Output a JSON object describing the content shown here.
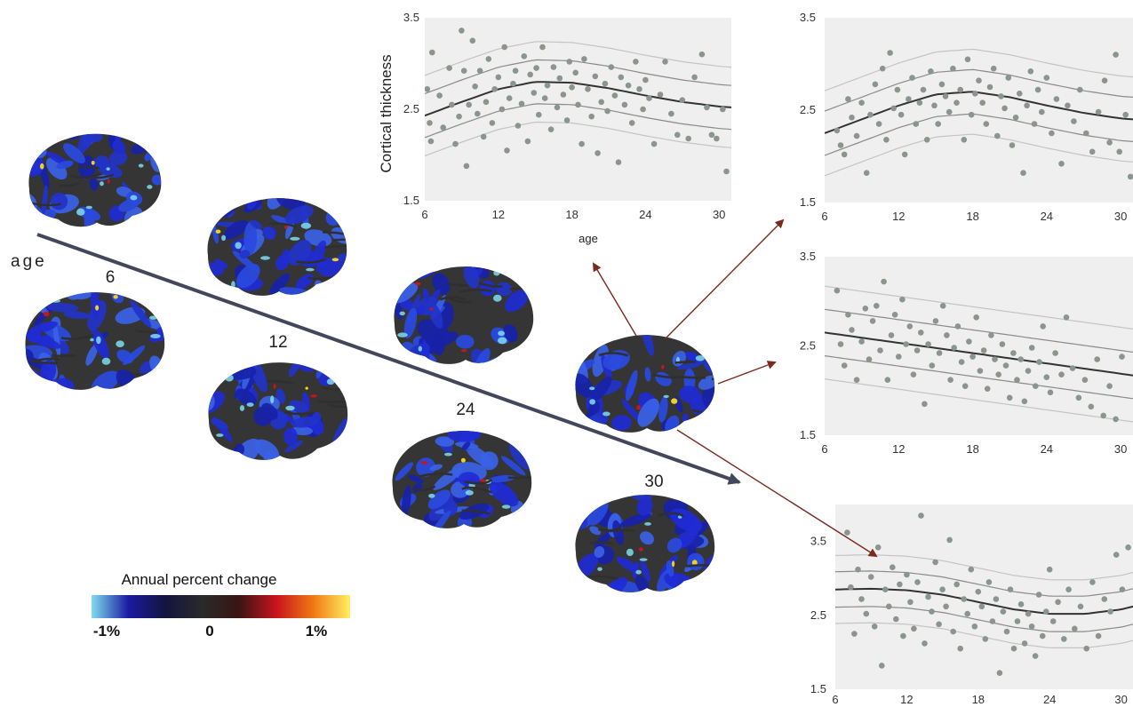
{
  "figure": {
    "age_axis_label": "age",
    "age_points": [
      "6",
      "12",
      "24",
      "30"
    ],
    "colorbar": {
      "title": "Annual percent change",
      "min_label": "-1%",
      "mid_label": "0",
      "max_label": "1%",
      "stops": [
        "#7fdcef",
        "#1a1aa0",
        "#141440",
        "#2a2a2a",
        "#3a1414",
        "#c8141e",
        "#f07814",
        "#fff064"
      ]
    },
    "colors": {
      "point": "#8a958d",
      "panel_bg": "#efefef",
      "fit_line": "#333333",
      "inner_band": "#8a8a8a",
      "outer_band": "#c4c4c4",
      "arrow_red": "#7a2b1e",
      "age_arrow": "#44465c",
      "brain_base": "#353535",
      "brain_blue": "#1f2bd4"
    }
  },
  "chart_data": [
    {
      "type": "scatter",
      "title": "",
      "ylabel": "Cortical thickness",
      "xlabel": "age",
      "xlim": [
        6,
        31
      ],
      "ylim": [
        1.5,
        3.5
      ],
      "xticks": [
        "6",
        "12",
        "18",
        "24",
        "30"
      ],
      "yticks": [
        "3.5",
        "2.5",
        "1.5"
      ],
      "grid": false,
      "fit": {
        "x": [
          6,
          9,
          12,
          15,
          18,
          21,
          24,
          27,
          30,
          31
        ],
        "y": [
          2.43,
          2.58,
          2.72,
          2.8,
          2.79,
          2.73,
          2.65,
          2.58,
          2.53,
          2.52
        ]
      },
      "band_offsets": [
        0.24,
        0.44
      ],
      "points": [
        [
          6.2,
          2.72
        ],
        [
          6.4,
          2.35
        ],
        [
          6.5,
          2.15
        ],
        [
          6.6,
          3.12
        ],
        [
          7.2,
          2.65
        ],
        [
          7.5,
          2.3
        ],
        [
          8,
          2.95
        ],
        [
          8.2,
          2.55
        ],
        [
          8.5,
          2.12
        ],
        [
          8.8,
          2.42
        ],
        [
          9,
          3.36
        ],
        [
          9.2,
          2.92
        ],
        [
          9.4,
          1.88
        ],
        [
          9.6,
          2.55
        ],
        [
          9.9,
          3.25
        ],
        [
          10.1,
          2.75
        ],
        [
          10.3,
          2.45
        ],
        [
          10.5,
          2.92
        ],
        [
          10.8,
          2.2
        ],
        [
          11,
          2.58
        ],
        [
          11.2,
          3.05
        ],
        [
          11.5,
          2.35
        ],
        [
          11.7,
          2.72
        ],
        [
          12,
          2.85
        ],
        [
          12.3,
          2.5
        ],
        [
          12.5,
          3.18
        ],
        [
          12.7,
          2.05
        ],
        [
          12.9,
          2.62
        ],
        [
          13.2,
          2.78
        ],
        [
          13.4,
          2.92
        ],
        [
          13.6,
          2.32
        ],
        [
          13.9,
          2.56
        ],
        [
          14.1,
          3.08
        ],
        [
          14.4,
          2.15
        ],
        [
          14.6,
          2.88
        ],
        [
          14.9,
          2.68
        ],
        [
          15.1,
          2.95
        ],
        [
          15.3,
          2.44
        ],
        [
          15.6,
          3.18
        ],
        [
          15.8,
          2.62
        ],
        [
          16,
          2.76
        ],
        [
          16.3,
          2.28
        ],
        [
          16.5,
          2.96
        ],
        [
          16.8,
          2.52
        ],
        [
          17,
          2.84
        ],
        [
          17.3,
          2.66
        ],
        [
          17.6,
          2.38
        ],
        [
          17.8,
          3.02
        ],
        [
          18,
          2.74
        ],
        [
          18.3,
          2.9
        ],
        [
          18.5,
          2.55
        ],
        [
          18.8,
          2.12
        ],
        [
          19,
          3.05
        ],
        [
          19.3,
          2.72
        ],
        [
          19.6,
          2.42
        ],
        [
          19.9,
          2.86
        ],
        [
          20.1,
          2.02
        ],
        [
          20.4,
          2.58
        ],
        [
          20.7,
          2.78
        ],
        [
          20.9,
          2.48
        ],
        [
          21.2,
          2.96
        ],
        [
          21.5,
          2.65
        ],
        [
          21.8,
          1.92
        ],
        [
          22,
          2.85
        ],
        [
          22.3,
          2.55
        ],
        [
          22.6,
          2.76
        ],
        [
          22.9,
          2.35
        ],
        [
          23.2,
          3.02
        ],
        [
          23.5,
          2.72
        ],
        [
          23.8,
          2.5
        ],
        [
          24,
          2.82
        ],
        [
          24.3,
          2.62
        ],
        [
          24.7,
          2.12
        ],
        [
          25.2,
          2.66
        ],
        [
          25.6,
          3.02
        ],
        [
          26.1,
          2.45
        ],
        [
          26.6,
          2.22
        ],
        [
          27,
          2.6
        ],
        [
          27.5,
          2.18
        ],
        [
          28,
          2.85
        ],
        [
          28.6,
          3.1
        ],
        [
          29,
          2.52
        ],
        [
          29.4,
          2.22
        ],
        [
          29.8,
          2.18
        ],
        [
          30.3,
          2.5
        ],
        [
          30.6,
          1.82
        ]
      ]
    },
    {
      "type": "scatter",
      "title": "",
      "xlabel": "",
      "ylabel": "",
      "xlim": [
        6,
        31
      ],
      "ylim": [
        1.5,
        3.5
      ],
      "xticks": [
        "6",
        "12",
        "18",
        "24",
        "30"
      ],
      "yticks": [
        "3.5",
        "2.5",
        "1.5"
      ],
      "grid": false,
      "fit": {
        "x": [
          6,
          9,
          12,
          15,
          18,
          21,
          24,
          27,
          30,
          31
        ],
        "y": [
          2.25,
          2.4,
          2.55,
          2.67,
          2.7,
          2.64,
          2.55,
          2.47,
          2.41,
          2.4
        ]
      },
      "band_offsets": [
        0.24,
        0.46
      ],
      "points": [
        [
          7,
          2.28
        ],
        [
          7.3,
          2.12
        ],
        [
          7.6,
          2.02
        ],
        [
          7.9,
          2.62
        ],
        [
          8.2,
          2.42
        ],
        [
          8.6,
          2.22
        ],
        [
          9,
          2.58
        ],
        [
          9.4,
          1.82
        ],
        [
          9.7,
          2.45
        ],
        [
          10.1,
          2.78
        ],
        [
          10.4,
          2.35
        ],
        [
          10.7,
          2.95
        ],
        [
          11,
          2.18
        ],
        [
          11.3,
          3.12
        ],
        [
          11.6,
          2.52
        ],
        [
          11.9,
          2.72
        ],
        [
          12.2,
          2.45
        ],
        [
          12.5,
          2.02
        ],
        [
          12.8,
          2.62
        ],
        [
          13.1,
          2.85
        ],
        [
          13.4,
          2.35
        ],
        [
          13.7,
          2.58
        ],
        [
          14,
          2.72
        ],
        [
          14.3,
          2.18
        ],
        [
          14.6,
          2.92
        ],
        [
          14.9,
          2.55
        ],
        [
          15.2,
          2.35
        ],
        [
          15.5,
          2.78
        ],
        [
          15.8,
          2.65
        ],
        [
          16.1,
          2.48
        ],
        [
          16.4,
          2.95
        ],
        [
          16.7,
          2.58
        ],
        [
          17,
          2.72
        ],
        [
          17.3,
          2.18
        ],
        [
          17.6,
          3.05
        ],
        [
          17.9,
          2.45
        ],
        [
          18.2,
          2.68
        ],
        [
          18.5,
          2.82
        ],
        [
          18.8,
          2.58
        ],
        [
          19.1,
          2.35
        ],
        [
          19.4,
          2.75
        ],
        [
          19.7,
          2.95
        ],
        [
          20,
          2.22
        ],
        [
          20.3,
          2.65
        ],
        [
          20.6,
          2.52
        ],
        [
          20.9,
          2.85
        ],
        [
          21.2,
          2.12
        ],
        [
          21.5,
          2.42
        ],
        [
          21.8,
          2.68
        ],
        [
          22.1,
          1.82
        ],
        [
          22.4,
          2.55
        ],
        [
          22.7,
          2.92
        ],
        [
          23,
          2.35
        ],
        [
          23.3,
          2.72
        ],
        [
          23.6,
          2.48
        ],
        [
          24,
          2.85
        ],
        [
          24.4,
          2.25
        ],
        [
          24.8,
          2.62
        ],
        [
          25.2,
          1.92
        ],
        [
          25.7,
          2.55
        ],
        [
          26.2,
          2.38
        ],
        [
          26.7,
          2.72
        ],
        [
          27.2,
          2.25
        ],
        [
          27.7,
          2.05
        ],
        [
          28.2,
          2.48
        ],
        [
          28.7,
          2.82
        ],
        [
          29.1,
          2.15
        ],
        [
          29.6,
          3.1
        ],
        [
          29.9,
          2.05
        ],
        [
          30.4,
          2.45
        ],
        [
          30.8,
          1.78
        ]
      ]
    },
    {
      "type": "scatter",
      "title": "",
      "xlabel": "",
      "ylabel": "",
      "xlim": [
        6,
        31
      ],
      "ylim": [
        1.5,
        3.5
      ],
      "xticks": [
        "6",
        "12",
        "18",
        "24",
        "30"
      ],
      "yticks": [
        "3.5",
        "2.5",
        "1.5"
      ],
      "grid": false,
      "fit": {
        "x": [
          6,
          31
        ],
        "y": [
          2.65,
          2.17
        ]
      },
      "band_offsets": [
        0.26,
        0.52
      ],
      "points": [
        [
          7,
          3.12
        ],
        [
          7.3,
          2.52
        ],
        [
          7.6,
          2.28
        ],
        [
          7.9,
          2.85
        ],
        [
          8.2,
          2.68
        ],
        [
          8.6,
          2.12
        ],
        [
          9,
          2.55
        ],
        [
          9.3,
          2.92
        ],
        [
          9.6,
          2.35
        ],
        [
          9.9,
          2.78
        ],
        [
          10.2,
          2.95
        ],
        [
          10.5,
          2.45
        ],
        [
          10.8,
          3.22
        ],
        [
          11.1,
          2.12
        ],
        [
          11.4,
          2.62
        ],
        [
          11.7,
          2.85
        ],
        [
          12,
          2.38
        ],
        [
          12.3,
          3.02
        ],
        [
          12.6,
          2.52
        ],
        [
          12.9,
          2.72
        ],
        [
          13.2,
          2.18
        ],
        [
          13.5,
          2.45
        ],
        [
          13.8,
          2.65
        ],
        [
          14.1,
          1.85
        ],
        [
          14.4,
          2.52
        ],
        [
          14.7,
          2.28
        ],
        [
          15,
          2.78
        ],
        [
          15.3,
          2.42
        ],
        [
          15.6,
          2.95
        ],
        [
          15.9,
          2.62
        ],
        [
          16.2,
          2.12
        ],
        [
          16.5,
          2.48
        ],
        [
          16.8,
          2.72
        ],
        [
          17.1,
          2.32
        ],
        [
          17.4,
          2.05
        ],
        [
          17.7,
          2.55
        ],
        [
          18,
          2.38
        ],
        [
          18.3,
          2.82
        ],
        [
          18.6,
          2.22
        ],
        [
          18.9,
          2.45
        ],
        [
          19.2,
          2.02
        ],
        [
          19.5,
          2.62
        ],
        [
          19.8,
          2.35
        ],
        [
          20.1,
          2.18
        ],
        [
          20.4,
          2.52
        ],
        [
          20.7,
          2.28
        ],
        [
          21,
          1.92
        ],
        [
          21.3,
          2.42
        ],
        [
          21.6,
          2.12
        ],
        [
          21.9,
          2.35
        ],
        [
          22.2,
          1.88
        ],
        [
          22.5,
          2.22
        ],
        [
          22.8,
          2.48
        ],
        [
          23.1,
          2.05
        ],
        [
          23.4,
          2.32
        ],
        [
          23.7,
          2.72
        ],
        [
          24,
          2.15
        ],
        [
          24.3,
          1.98
        ],
        [
          24.7,
          2.42
        ],
        [
          25.2,
          2.18
        ],
        [
          25.6,
          2.82
        ],
        [
          26.1,
          2.25
        ],
        [
          26.6,
          1.92
        ],
        [
          27.1,
          2.12
        ],
        [
          27.6,
          1.82
        ],
        [
          28.1,
          2.35
        ],
        [
          28.6,
          1.72
        ],
        [
          29.1,
          2.05
        ],
        [
          29.6,
          1.68
        ],
        [
          30.1,
          2.38
        ]
      ]
    },
    {
      "type": "scatter",
      "title": "",
      "xlabel": "",
      "ylabel": "",
      "xlim": [
        6,
        31
      ],
      "ylim": [
        1.5,
        4.0
      ],
      "xticks": [
        "6",
        "12",
        "18",
        "24",
        "30"
      ],
      "yticks": [
        "3.5",
        "2.5",
        "1.5"
      ],
      "grid": false,
      "fit": {
        "x": [
          6,
          9,
          12,
          15,
          18,
          21,
          24,
          27,
          30,
          31
        ],
        "y": [
          2.85,
          2.86,
          2.84,
          2.78,
          2.68,
          2.58,
          2.52,
          2.52,
          2.58,
          2.62
        ]
      },
      "band_offsets": [
        0.24,
        0.46
      ],
      "points": [
        [
          7,
          3.62
        ],
        [
          7.3,
          2.88
        ],
        [
          7.6,
          2.25
        ],
        [
          7.9,
          3.12
        ],
        [
          8.2,
          2.72
        ],
        [
          8.6,
          2.52
        ],
        [
          9,
          3.02
        ],
        [
          9.3,
          2.35
        ],
        [
          9.6,
          3.42
        ],
        [
          9.9,
          1.82
        ],
        [
          10.2,
          2.85
        ],
        [
          10.5,
          2.62
        ],
        [
          10.8,
          3.15
        ],
        [
          11.1,
          2.45
        ],
        [
          11.4,
          2.92
        ],
        [
          11.7,
          2.22
        ],
        [
          12,
          3.05
        ],
        [
          12.3,
          2.68
        ],
        [
          12.6,
          2.32
        ],
        [
          12.9,
          2.95
        ],
        [
          13.2,
          3.85
        ],
        [
          13.5,
          2.12
        ],
        [
          13.8,
          2.75
        ],
        [
          14.1,
          2.55
        ],
        [
          14.4,
          3.22
        ],
        [
          14.7,
          2.38
        ],
        [
          15,
          2.85
        ],
        [
          15.3,
          2.62
        ],
        [
          15.6,
          3.52
        ],
        [
          15.9,
          2.28
        ],
        [
          16.2,
          2.92
        ],
        [
          16.5,
          2.05
        ],
        [
          16.8,
          2.72
        ],
        [
          17.1,
          2.52
        ],
        [
          17.4,
          3.12
        ],
        [
          17.7,
          2.35
        ],
        [
          18,
          2.82
        ],
        [
          18.3,
          2.62
        ],
        [
          18.6,
          2.18
        ],
        [
          18.9,
          2.95
        ],
        [
          19.2,
          2.42
        ],
        [
          19.5,
          2.72
        ],
        [
          19.8,
          1.72
        ],
        [
          20.1,
          2.55
        ],
        [
          20.4,
          2.28
        ],
        [
          20.7,
          2.85
        ],
        [
          21,
          2.05
        ],
        [
          21.3,
          2.42
        ],
        [
          21.6,
          2.65
        ],
        [
          21.9,
          2.12
        ],
        [
          22.2,
          2.52
        ],
        [
          22.5,
          2.35
        ],
        [
          22.8,
          1.95
        ],
        [
          23.1,
          2.78
        ],
        [
          23.4,
          2.22
        ],
        [
          23.7,
          2.55
        ],
        [
          24,
          3.12
        ],
        [
          24.3,
          2.42
        ],
        [
          24.7,
          2.68
        ],
        [
          25.2,
          2.18
        ],
        [
          25.6,
          2.85
        ],
        [
          26.1,
          2.32
        ],
        [
          26.6,
          2.62
        ],
        [
          27.1,
          2.05
        ],
        [
          27.6,
          2.95
        ],
        [
          28.1,
          2.22
        ],
        [
          28.6,
          2.72
        ],
        [
          29.1,
          2.55
        ],
        [
          29.6,
          3.32
        ],
        [
          30.1,
          2.85
        ],
        [
          30.6,
          3.42
        ]
      ]
    }
  ]
}
